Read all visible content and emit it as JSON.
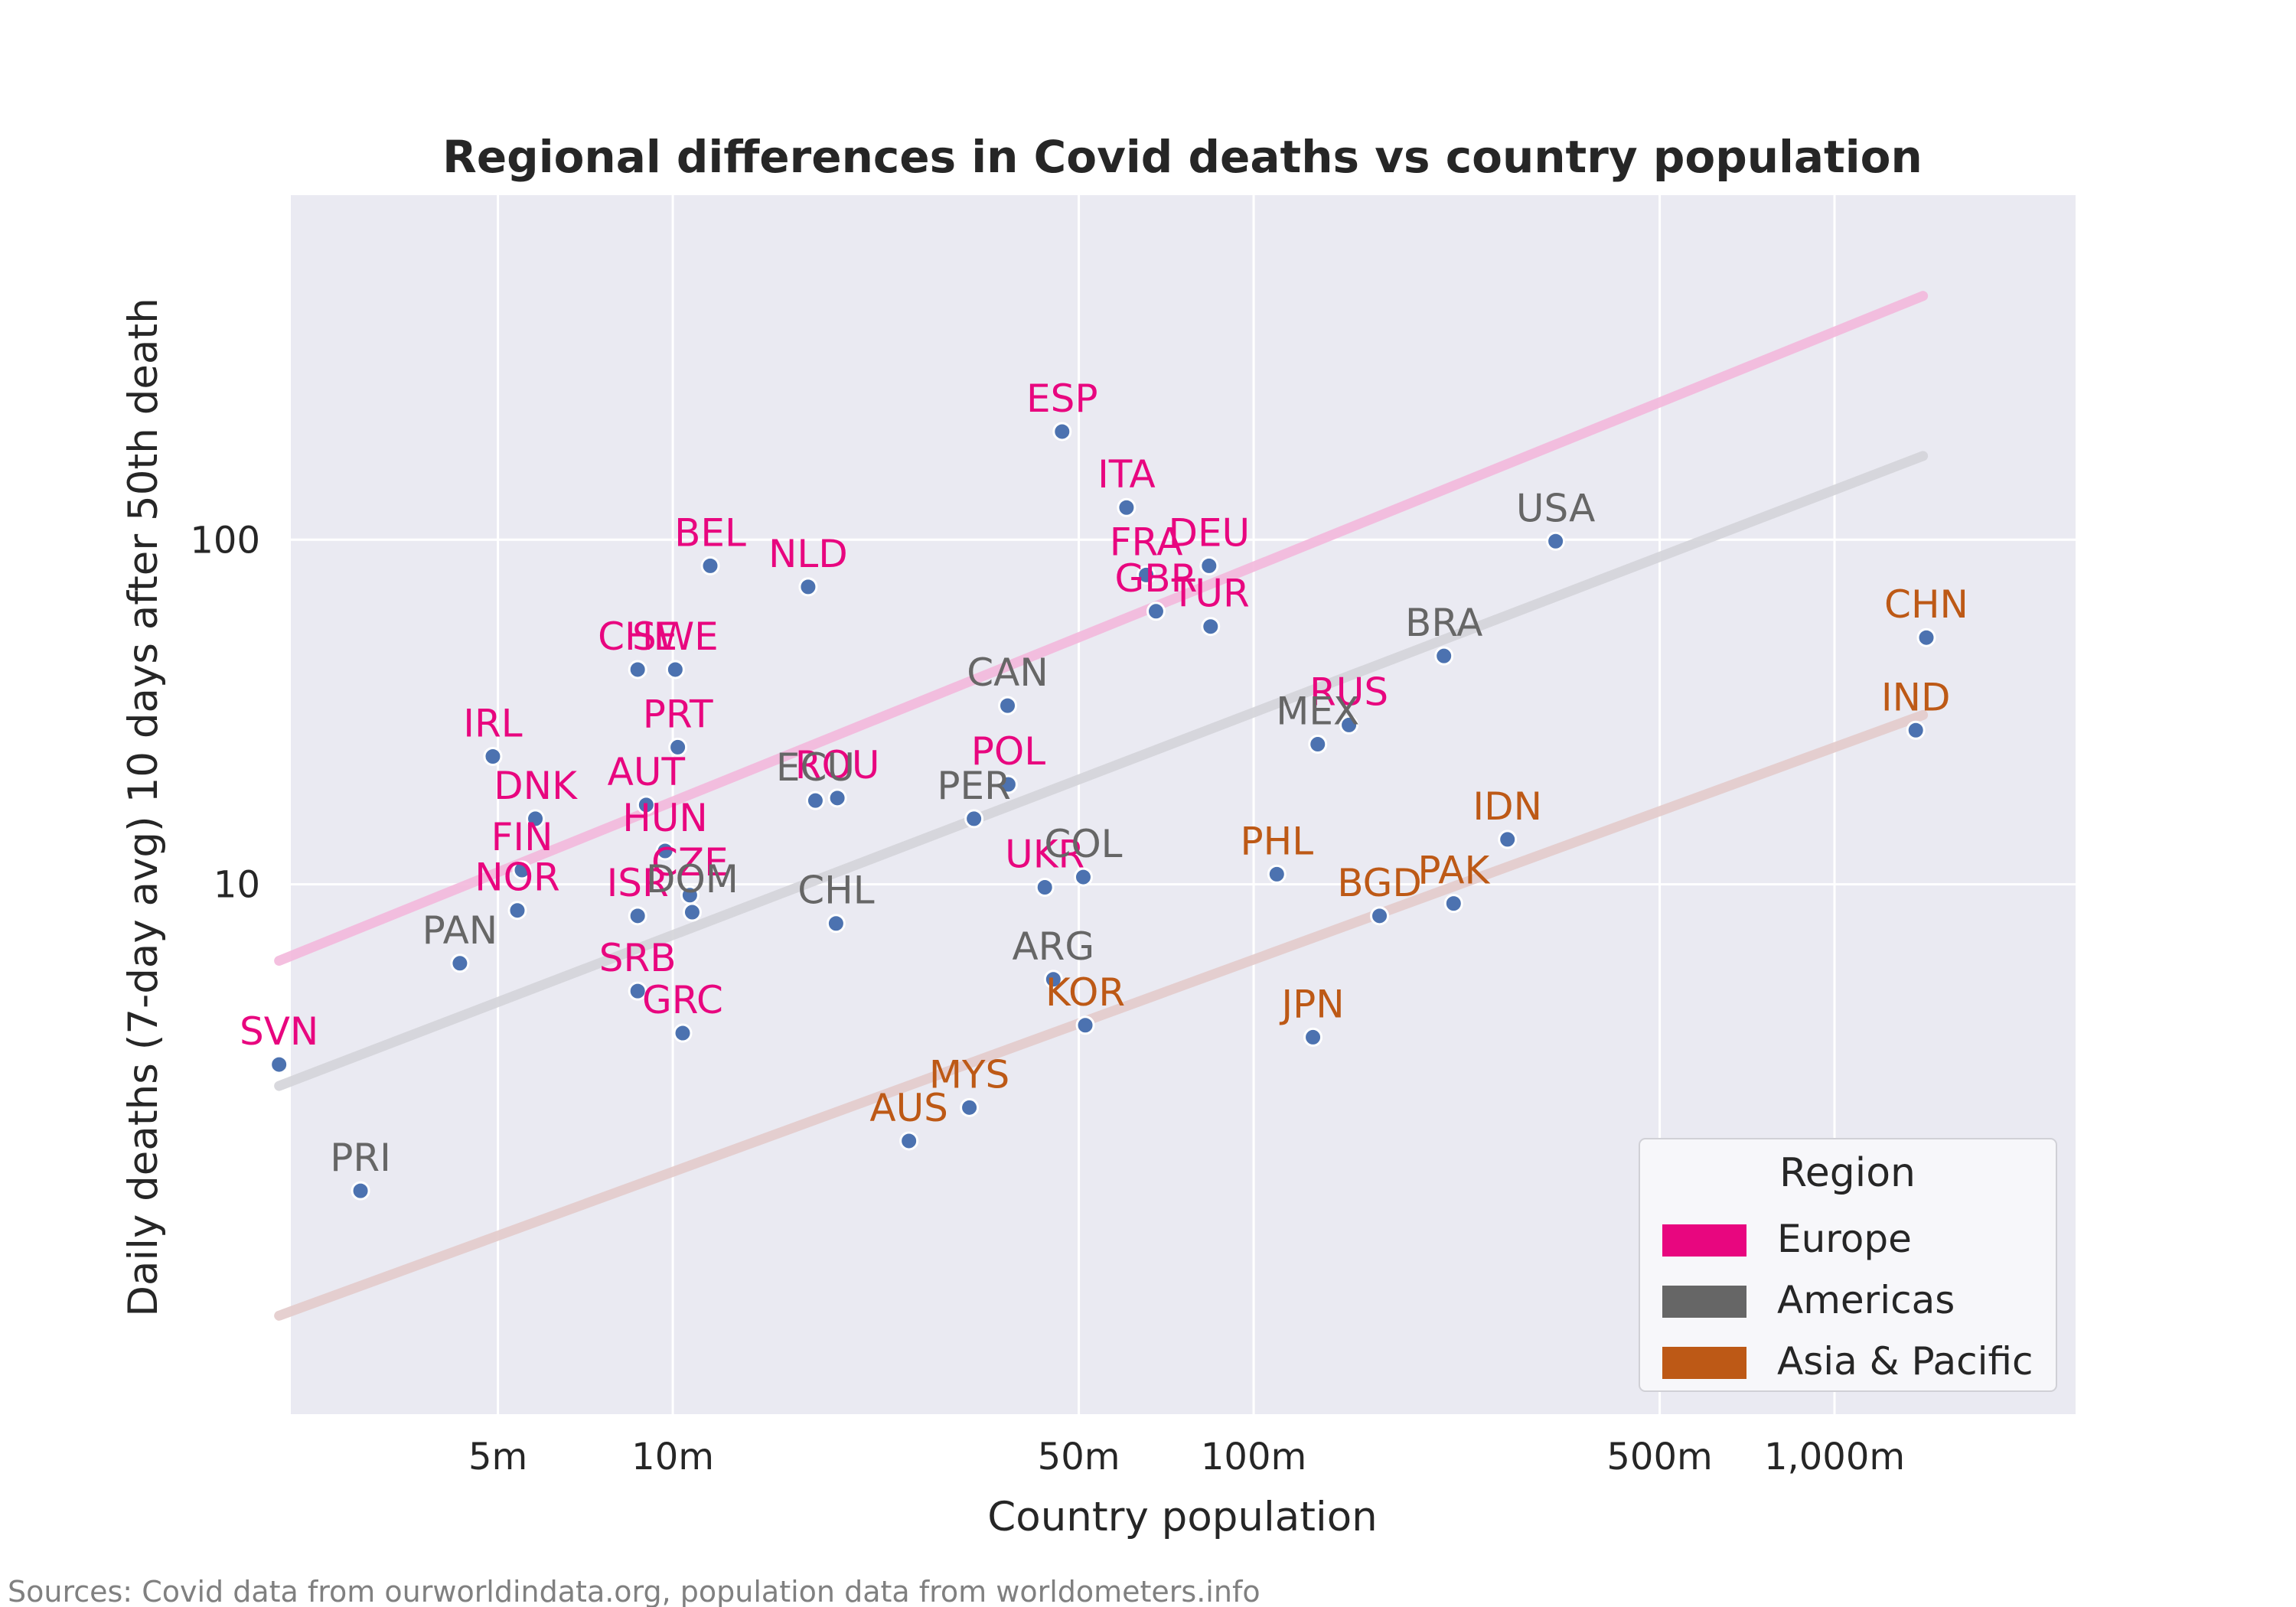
{
  "chart_data": {
    "type": "scatter",
    "title": "Regional differences in Covid deaths vs country population",
    "xlabel": "Country population",
    "ylabel": "Daily deaths (7-day avg) 10 days after 50th death",
    "xscale": "log",
    "yscale": "log",
    "xlim": [
      2.2,
      2600
    ],
    "ylim": [
      0.29,
      1000
    ],
    "xticks": [
      {
        "value": 5,
        "label": "5m"
      },
      {
        "value": 10,
        "label": "10m"
      },
      {
        "value": 50,
        "label": "50m"
      },
      {
        "value": 100,
        "label": "100m"
      },
      {
        "value": 500,
        "label": "500m"
      },
      {
        "value": 1000,
        "label": "1,000m"
      }
    ],
    "yticks": [
      {
        "value": 10,
        "label": "10"
      },
      {
        "value": 100,
        "label": "100"
      }
    ],
    "grid": true,
    "legend": {
      "title": "Region",
      "placement": "lower right",
      "entries": [
        {
          "name": "Europe",
          "color": "#e8067f"
        },
        {
          "name": "Americas",
          "color": "#666666"
        },
        {
          "name": "Asia & Pacific",
          "color": "#bd5916"
        }
      ]
    },
    "colors": {
      "point": "#4c72b0",
      "point_edge": "#ffffff",
      "background": "#eaeaf2",
      "grid": "#ffffff"
    },
    "trend_lines": [
      {
        "region": "Europe",
        "x": [
          2.1,
          1420
        ],
        "y": [
          6,
          510
        ],
        "color": "#f3b8dc"
      },
      {
        "region": "Americas",
        "x": [
          2.1,
          1420
        ],
        "y": [
          2.6,
          175
        ],
        "color": "#d4d4d9"
      },
      {
        "region": "Asia & Pacific",
        "x": [
          2.1,
          1420
        ],
        "y": [
          0.56,
          31
        ],
        "color": "#e3cbcb"
      }
    ],
    "series": [
      {
        "name": "Europe",
        "color": "#e8067f",
        "points": [
          {
            "label": "ESP",
            "x": 46.8,
            "y": 206
          },
          {
            "label": "ITA",
            "x": 60.4,
            "y": 124
          },
          {
            "label": "DEU",
            "x": 83.8,
            "y": 84
          },
          {
            "label": "FRA",
            "x": 65.3,
            "y": 79
          },
          {
            "label": "GBR",
            "x": 67.9,
            "y": 62
          },
          {
            "label": "TUR",
            "x": 84.3,
            "y": 56
          },
          {
            "label": "BEL",
            "x": 11.6,
            "y": 84
          },
          {
            "label": "NLD",
            "x": 17.1,
            "y": 73
          },
          {
            "label": "CHE",
            "x": 8.7,
            "y": 42
          },
          {
            "label": "SWE",
            "x": 10.1,
            "y": 42
          },
          {
            "label": "PRT",
            "x": 10.2,
            "y": 25
          },
          {
            "label": "IRL",
            "x": 4.9,
            "y": 23.5
          },
          {
            "label": "AUT",
            "x": 9.0,
            "y": 17
          },
          {
            "label": "DNK",
            "x": 5.8,
            "y": 15.5
          },
          {
            "label": "ROU",
            "x": 19.2,
            "y": 17.8
          },
          {
            "label": "POL",
            "x": 37.8,
            "y": 19.5
          },
          {
            "label": "HUN",
            "x": 9.7,
            "y": 12.5
          },
          {
            "label": "FIN",
            "x": 5.5,
            "y": 11
          },
          {
            "label": "NOR",
            "x": 5.4,
            "y": 8.4
          },
          {
            "label": "ISR",
            "x": 8.7,
            "y": 8.1
          },
          {
            "label": "CZE",
            "x": 10.7,
            "y": 9.3
          },
          {
            "label": "UKR",
            "x": 43.7,
            "y": 9.8
          },
          {
            "label": "RUS",
            "x": 145.9,
            "y": 29
          },
          {
            "label": "SRB",
            "x": 8.7,
            "y": 4.9
          },
          {
            "label": "GRC",
            "x": 10.4,
            "y": 3.7
          },
          {
            "label": "SVN",
            "x": 2.1,
            "y": 3.0
          }
        ]
      },
      {
        "name": "Americas",
        "color": "#666666",
        "points": [
          {
            "label": "USA",
            "x": 331,
            "y": 99
          },
          {
            "label": "BRA",
            "x": 212.6,
            "y": 46
          },
          {
            "label": "CAN",
            "x": 37.7,
            "y": 33
          },
          {
            "label": "MEX",
            "x": 128.9,
            "y": 25.5
          },
          {
            "label": "ECU",
            "x": 17.6,
            "y": 17.5
          },
          {
            "label": "PER",
            "x": 33.0,
            "y": 15.5
          },
          {
            "label": "COL",
            "x": 50.9,
            "y": 10.5
          },
          {
            "label": "DOM",
            "x": 10.8,
            "y": 8.3
          },
          {
            "label": "CHL",
            "x": 19.1,
            "y": 7.7
          },
          {
            "label": "ARG",
            "x": 45.2,
            "y": 5.3
          },
          {
            "label": "PAN",
            "x": 4.3,
            "y": 5.9
          },
          {
            "label": "PRI",
            "x": 2.9,
            "y": 1.29
          }
        ]
      },
      {
        "name": "Asia & Pacific",
        "color": "#bd5916",
        "points": [
          {
            "label": "CHN",
            "x": 1439,
            "y": 52
          },
          {
            "label": "IND",
            "x": 1380,
            "y": 28
          },
          {
            "label": "IDN",
            "x": 273.5,
            "y": 13.5
          },
          {
            "label": "PHL",
            "x": 109.6,
            "y": 10.7
          },
          {
            "label": "PAK",
            "x": 220.9,
            "y": 8.8
          },
          {
            "label": "BGD",
            "x": 164.7,
            "y": 8.1
          },
          {
            "label": "JPN",
            "x": 126.5,
            "y": 3.6
          },
          {
            "label": "KOR",
            "x": 51.3,
            "y": 3.9
          },
          {
            "label": "MYS",
            "x": 32.4,
            "y": 2.25
          },
          {
            "label": "AUS",
            "x": 25.5,
            "y": 1.8
          }
        ]
      }
    ]
  },
  "source_note": "Sources: Covid data from ourworldindata.org, population data from worldometers.info"
}
